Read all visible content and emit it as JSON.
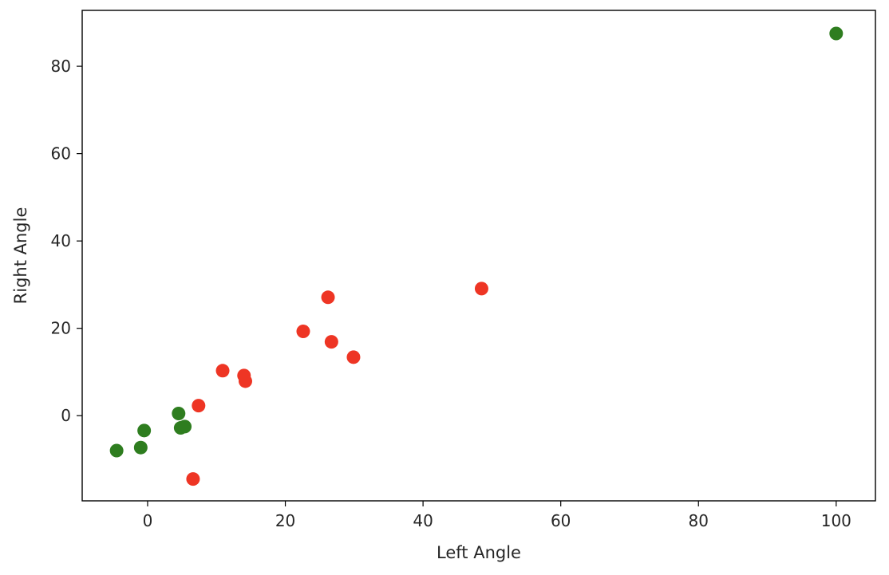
{
  "chart_data": {
    "type": "scatter",
    "title": "",
    "xlabel": "Left Angle",
    "ylabel": "Right Angle",
    "xlim": [
      -9.5,
      105.7
    ],
    "ylim": [
      -19.5,
      92.8
    ],
    "xticks": [
      0,
      20,
      40,
      60,
      80,
      100
    ],
    "yticks": [
      0,
      20,
      40,
      60,
      80
    ],
    "grid": false,
    "series": [
      {
        "color": "#2e7d1f",
        "x": [
          100.0,
          4.5,
          4.8,
          5.4,
          -0.5,
          -1.0,
          -4.5
        ],
        "y": [
          87.5,
          0.5,
          -2.8,
          -2.5,
          -3.4,
          -7.3,
          -8.0
        ]
      },
      {
        "color": "#ee3524",
        "x": [
          48.5,
          26.2,
          22.6,
          26.7,
          29.9,
          10.9,
          14.0,
          14.2,
          7.4,
          6.6
        ],
        "y": [
          29.1,
          27.1,
          19.3,
          16.9,
          13.4,
          10.3,
          9.2,
          7.9,
          2.3,
          -14.5
        ]
      }
    ]
  }
}
